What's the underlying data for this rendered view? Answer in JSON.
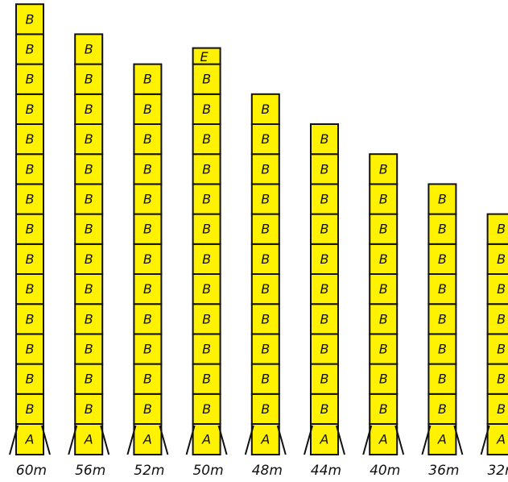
{
  "colors": {
    "segment_fill": "#fef200",
    "stroke": "#111111",
    "background": "#ffffff"
  },
  "masts": [
    {
      "height_label": "60m",
      "base": "A",
      "segments": [
        "B",
        "B",
        "B",
        "B",
        "B",
        "B",
        "B",
        "B",
        "B",
        "B",
        "B",
        "B",
        "B",
        "B"
      ]
    },
    {
      "height_label": "56m",
      "base": "A",
      "segments": [
        "B",
        "B",
        "B",
        "B",
        "B",
        "B",
        "B",
        "B",
        "B",
        "B",
        "B",
        "B",
        "B"
      ]
    },
    {
      "height_label": "52m",
      "base": "A",
      "segments": [
        "B",
        "B",
        "B",
        "B",
        "B",
        "B",
        "B",
        "B",
        "B",
        "B",
        "B",
        "B"
      ]
    },
    {
      "height_label": "50m",
      "base": "A",
      "segments": [
        "B",
        "B",
        "B",
        "B",
        "B",
        "B",
        "B",
        "B",
        "B",
        "B",
        "B",
        "B"
      ],
      "top": "E"
    },
    {
      "height_label": "48m",
      "base": "A",
      "segments": [
        "B",
        "B",
        "B",
        "B",
        "B",
        "B",
        "B",
        "B",
        "B",
        "B",
        "B"
      ]
    },
    {
      "height_label": "44m",
      "base": "A",
      "segments": [
        "B",
        "B",
        "B",
        "B",
        "B",
        "B",
        "B",
        "B",
        "B",
        "B"
      ]
    },
    {
      "height_label": "40m",
      "base": "A",
      "segments": [
        "B",
        "B",
        "B",
        "B",
        "B",
        "B",
        "B",
        "B",
        "B"
      ]
    },
    {
      "height_label": "36m",
      "base": "A",
      "segments": [
        "B",
        "B",
        "B",
        "B",
        "B",
        "B",
        "B",
        "B"
      ]
    },
    {
      "height_label": "32m",
      "base": "A",
      "segments": [
        "B",
        "B",
        "B",
        "B",
        "B",
        "B",
        "B"
      ]
    }
  ]
}
